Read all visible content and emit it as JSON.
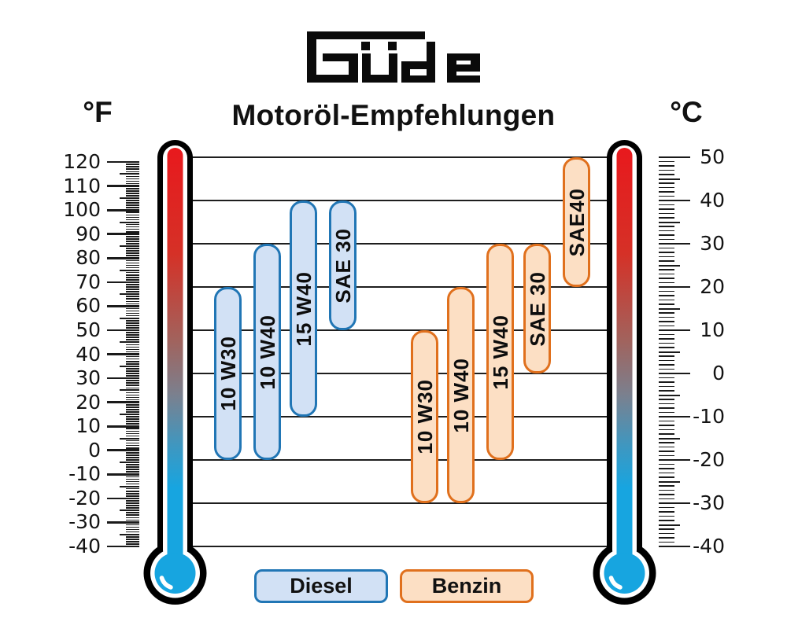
{
  "brand": {
    "name": "Güde"
  },
  "header": {
    "title": "Motoröl-Empfehlungen",
    "left_unit": "°F",
    "right_unit": "°C"
  },
  "chart_data": {
    "type": "bar",
    "subtype": "vertical-range-bars",
    "title": "Motoröl-Empfehlungen",
    "description": "Recommended engine oil viscosity grades by ambient temperature for Diesel and Benzin engines, shown between two thermometers",
    "y_axis_left": {
      "unit": "°F",
      "min": -40,
      "max": 120,
      "major_step": 10,
      "minor_step": 1,
      "major_tick_labels": [
        120,
        110,
        100,
        90,
        80,
        70,
        60,
        50,
        40,
        30,
        20,
        10,
        0,
        -10,
        -20,
        -30,
        -40
      ]
    },
    "y_axis_right": {
      "unit": "°C",
      "min": -40,
      "max": 50,
      "major_step": 10,
      "minor_step": 1,
      "major_tick_labels": [
        50,
        40,
        30,
        20,
        10,
        0,
        -10,
        -20,
        -30,
        -40
      ]
    },
    "gridlines_c": [
      50,
      40,
      30,
      20,
      10,
      0,
      -10,
      -20,
      -30,
      -40
    ],
    "grid": true,
    "series": [
      {
        "name": "Diesel",
        "fill": "#d2e1f5",
        "border": "#2176b5",
        "bars": [
          {
            "label": "10 W30",
            "min_c": -20,
            "max_c": 20
          },
          {
            "label": "10 W40",
            "min_c": -20,
            "max_c": 30
          },
          {
            "label": "15 W40",
            "min_c": -10,
            "max_c": 40
          },
          {
            "label": "SAE 30",
            "min_c": 10,
            "max_c": 40
          }
        ]
      },
      {
        "name": "Benzin",
        "fill": "#fcdfc4",
        "border": "#e0701d",
        "bars": [
          {
            "label": "10 W30",
            "min_c": -30,
            "max_c": 10
          },
          {
            "label": "10 W40",
            "min_c": -30,
            "max_c": 20
          },
          {
            "label": "15 W40",
            "min_c": -20,
            "max_c": 30
          },
          {
            "label": "SAE 30",
            "min_c": 0,
            "max_c": 30
          },
          {
            "label": "SAE40",
            "min_c": 20,
            "max_c": 50
          }
        ]
      }
    ],
    "legend": [
      {
        "label": "Diesel"
      },
      {
        "label": "Benzin"
      }
    ],
    "legend_position": "bottom"
  },
  "colors": {
    "thermometer_hot": "#e8191d",
    "thermometer_cold": "#17a5e0",
    "grid": "#1e1e1e",
    "background": "#ffffff"
  }
}
